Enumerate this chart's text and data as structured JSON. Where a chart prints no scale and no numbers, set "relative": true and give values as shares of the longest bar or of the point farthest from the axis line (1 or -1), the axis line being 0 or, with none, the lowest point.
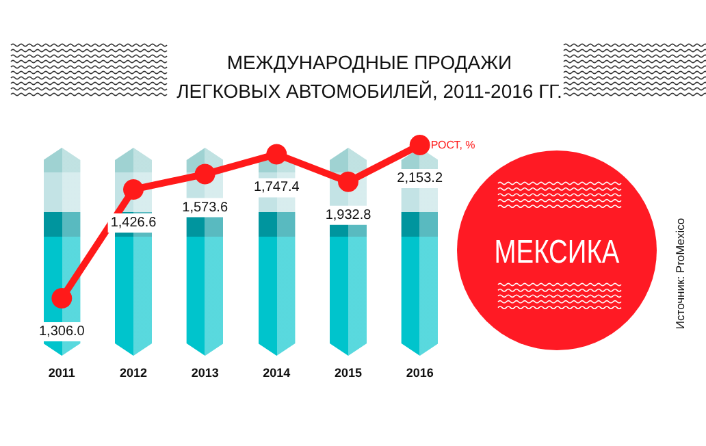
{
  "chart_data": {
    "type": "line",
    "title": "МЕЖДУНАРОДНЫЕ ПРОДАЖИ\nЛЕГКОВЫХ АВТОМОБИЛЕЙ, 2011-2016 ГГ.",
    "relative": true,
    "categories": [
      "2011",
      "2012",
      "2013",
      "2014",
      "2015",
      "2016"
    ],
    "series": [
      {
        "name": "РОСТ, %",
        "color": "#ff1a1a",
        "values": [
          0,
          0.71,
          0.81,
          0.94,
          0.76,
          1
        ]
      }
    ],
    "marker": "circle",
    "legend": false,
    "grid": false,
    "annotations": [
      "1,306.0",
      "1,426.6",
      "1,573.6",
      "1,747.4",
      "1,932.8",
      "2,153.2",
      "МЕКСИКА",
      "Источник: ProMexico"
    ]
  }
}
